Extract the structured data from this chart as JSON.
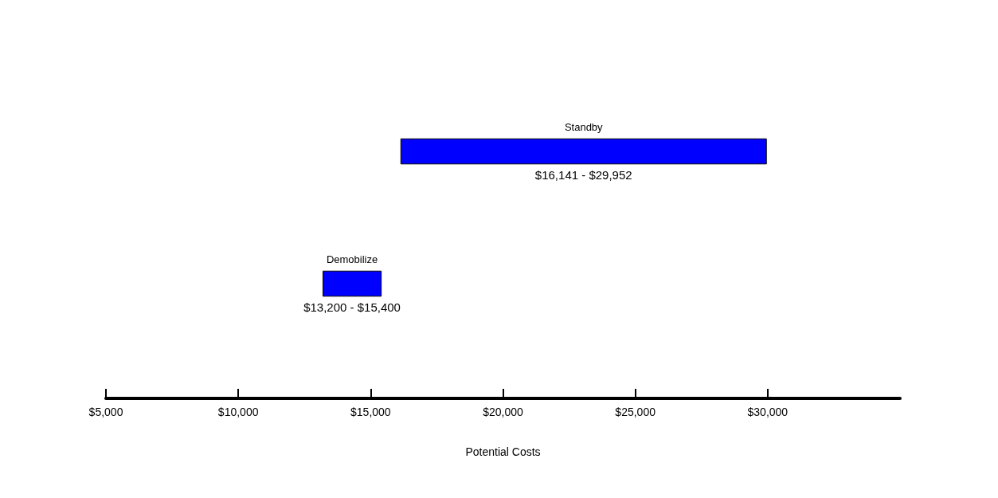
{
  "chart_data": {
    "type": "bar",
    "orientation": "horizontal",
    "xlabel": "Potential Costs",
    "categories": [
      "Standby",
      "Demobilize"
    ],
    "base": [
      16141,
      13200
    ],
    "values": [
      13811,
      2200
    ],
    "annotations": [
      "$16,141 - $29,952",
      "$13,200 - $15,400"
    ],
    "color": "#0000ff",
    "xlim": [
      5000,
      35000
    ],
    "xticks": [
      {
        "value": 5000,
        "label": "$5,000"
      },
      {
        "value": 10000,
        "label": "$10,000"
      },
      {
        "value": 15000,
        "label": "$15,000"
      },
      {
        "value": 20000,
        "label": "$20,000"
      },
      {
        "value": 25000,
        "label": "$25,000"
      },
      {
        "value": 30000,
        "label": "$30,000"
      }
    ],
    "grid": false
  }
}
